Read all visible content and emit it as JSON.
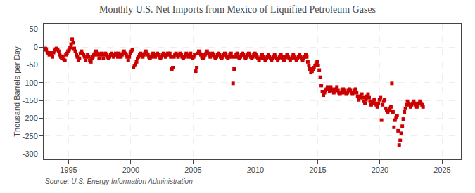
{
  "chart_data": {
    "type": "scatter",
    "title": "Monthly U.S. Net Imports from Mexico of Liquified Petroleum Gases",
    "ylabel": "Thousand Barrels per Day",
    "annotations": [
      "Source: U.S. Energy Information Administration"
    ],
    "color": "#cc0000",
    "marker": "square",
    "grid": true,
    "xlim": [
      1993.0,
      2026.5
    ],
    "ylim": [
      -315,
      65
    ],
    "xticks": [
      1995,
      2000,
      2005,
      2010,
      2015,
      2020,
      2025
    ],
    "yticks": [
      50,
      0,
      -50,
      -100,
      -150,
      -200,
      -250,
      -300
    ],
    "x": [
      1993.042,
      1993.125,
      1993.208,
      1993.292,
      1993.375,
      1993.458,
      1993.542,
      1993.625,
      1993.708,
      1993.792,
      1993.875,
      1993.958,
      1994.042,
      1994.125,
      1994.208,
      1994.292,
      1994.375,
      1994.458,
      1994.542,
      1994.625,
      1994.708,
      1994.792,
      1994.875,
      1994.958,
      1995.042,
      1995.125,
      1995.208,
      1995.292,
      1995.375,
      1995.458,
      1995.542,
      1995.625,
      1995.708,
      1995.792,
      1995.875,
      1995.958,
      1996.042,
      1996.125,
      1996.208,
      1996.292,
      1996.375,
      1996.458,
      1996.542,
      1996.625,
      1996.708,
      1996.792,
      1996.875,
      1996.958,
      1997.042,
      1997.125,
      1997.208,
      1997.292,
      1997.375,
      1997.458,
      1997.542,
      1997.625,
      1997.708,
      1997.792,
      1997.875,
      1997.958,
      1998.042,
      1998.125,
      1998.208,
      1998.292,
      1998.375,
      1998.458,
      1998.542,
      1998.625,
      1998.708,
      1998.792,
      1998.875,
      1998.958,
      1999.042,
      1999.125,
      1999.208,
      1999.292,
      1999.375,
      1999.458,
      1999.542,
      1999.625,
      1999.708,
      1999.792,
      1999.875,
      1999.958,
      2000.042,
      2000.125,
      2000.208,
      2000.292,
      2000.375,
      2000.458,
      2000.542,
      2000.625,
      2000.708,
      2000.792,
      2000.875,
      2000.958,
      2001.042,
      2001.125,
      2001.208,
      2001.292,
      2001.375,
      2001.458,
      2001.542,
      2001.625,
      2001.708,
      2001.792,
      2001.875,
      2001.958,
      2002.042,
      2002.125,
      2002.208,
      2002.292,
      2002.375,
      2002.458,
      2002.542,
      2002.625,
      2002.708,
      2002.792,
      2002.875,
      2002.958,
      2003.042,
      2003.125,
      2003.208,
      2003.292,
      2003.375,
      2003.458,
      2003.542,
      2003.625,
      2003.708,
      2003.792,
      2003.875,
      2003.958,
      2004.042,
      2004.125,
      2004.208,
      2004.292,
      2004.375,
      2004.458,
      2004.542,
      2004.625,
      2004.708,
      2004.792,
      2004.875,
      2004.958,
      2005.042,
      2005.125,
      2005.208,
      2005.292,
      2005.375,
      2005.458,
      2005.542,
      2005.625,
      2005.708,
      2005.792,
      2005.875,
      2005.958,
      2006.042,
      2006.125,
      2006.208,
      2006.292,
      2006.375,
      2006.458,
      2006.542,
      2006.625,
      2006.708,
      2006.792,
      2006.875,
      2006.958,
      2007.042,
      2007.125,
      2007.208,
      2007.292,
      2007.375,
      2007.458,
      2007.542,
      2007.625,
      2007.708,
      2007.792,
      2007.875,
      2007.958,
      2008.042,
      2008.125,
      2008.208,
      2008.292,
      2008.375,
      2008.458,
      2008.542,
      2008.625,
      2008.708,
      2008.792,
      2008.875,
      2008.958,
      2009.042,
      2009.125,
      2009.208,
      2009.292,
      2009.375,
      2009.458,
      2009.542,
      2009.625,
      2009.708,
      2009.792,
      2009.875,
      2009.958,
      2010.042,
      2010.125,
      2010.208,
      2010.292,
      2010.375,
      2010.458,
      2010.542,
      2010.625,
      2010.708,
      2010.792,
      2010.875,
      2010.958,
      2011.042,
      2011.125,
      2011.208,
      2011.292,
      2011.375,
      2011.458,
      2011.542,
      2011.625,
      2011.708,
      2011.792,
      2011.875,
      2011.958,
      2012.042,
      2012.125,
      2012.208,
      2012.292,
      2012.375,
      2012.458,
      2012.542,
      2012.625,
      2012.708,
      2012.792,
      2012.875,
      2012.958,
      2013.042,
      2013.125,
      2013.208,
      2013.292,
      2013.375,
      2013.458,
      2013.542,
      2013.625,
      2013.708,
      2013.792,
      2013.875,
      2013.958,
      2014.042,
      2014.125,
      2014.208,
      2014.292,
      2014.375,
      2014.458,
      2014.542,
      2014.625,
      2014.708,
      2014.792,
      2014.875,
      2014.958,
      2015.042,
      2015.125,
      2015.208,
      2015.292,
      2015.375,
      2015.458,
      2015.542,
      2015.625,
      2015.708,
      2015.792,
      2015.875,
      2015.958,
      2016.042,
      2016.125,
      2016.208,
      2016.292,
      2016.375,
      2016.458,
      2016.542,
      2016.625,
      2016.708,
      2016.792,
      2016.875,
      2016.958,
      2017.042,
      2017.125,
      2017.208,
      2017.292,
      2017.375,
      2017.458,
      2017.542,
      2017.625,
      2017.708,
      2017.792,
      2017.875,
      2017.958,
      2018.042,
      2018.125,
      2018.208,
      2018.292,
      2018.375,
      2018.458,
      2018.542,
      2018.625,
      2018.708,
      2018.792,
      2018.875,
      2018.958,
      2019.042,
      2019.125,
      2019.208,
      2019.292,
      2019.375,
      2019.458,
      2019.542,
      2019.625,
      2019.708,
      2019.792,
      2019.875,
      2019.958,
      2020.042,
      2020.125,
      2020.208,
      2020.292,
      2020.375,
      2020.458,
      2020.542,
      2020.625,
      2020.708,
      2020.792,
      2020.875,
      2020.958,
      2021.042,
      2021.125,
      2021.208,
      2021.292,
      2021.375,
      2021.458,
      2021.542,
      2021.625,
      2021.708,
      2021.792,
      2021.875,
      2021.958,
      2022.042,
      2022.125,
      2022.208,
      2022.292,
      2022.375,
      2022.458,
      2022.542,
      2022.625,
      2022.708,
      2022.792,
      2022.875,
      2022.958,
      2023.042,
      2023.125,
      2023.208,
      2023.292,
      2023.375,
      2023.458
    ],
    "values": [
      -8,
      -4,
      -6,
      -14,
      -18,
      -22,
      -16,
      -20,
      -28,
      -16,
      -10,
      -6,
      -4,
      -8,
      -12,
      -22,
      -28,
      -32,
      -26,
      -34,
      -38,
      -22,
      -18,
      -12,
      -8,
      -2,
      8,
      22,
      12,
      -4,
      -12,
      -22,
      -28,
      -38,
      -32,
      -18,
      -12,
      -18,
      -22,
      -28,
      -38,
      -28,
      -22,
      -28,
      -38,
      -42,
      -32,
      -28,
      -22,
      -18,
      -12,
      -18,
      -22,
      -32,
      -22,
      -18,
      -22,
      -32,
      -22,
      -18,
      -22,
      -28,
      -32,
      -28,
      -22,
      -18,
      -22,
      -28,
      -22,
      -18,
      -22,
      -28,
      -18,
      -22,
      -28,
      -22,
      -18,
      -12,
      -18,
      -22,
      -28,
      -38,
      -28,
      -18,
      -12,
      -8,
      -58,
      -52,
      -48,
      -42,
      -32,
      -28,
      -22,
      -18,
      -22,
      -28,
      -22,
      -18,
      -12,
      -18,
      -22,
      -28,
      -32,
      -28,
      -22,
      -18,
      -22,
      -28,
      -22,
      -18,
      -22,
      -28,
      -32,
      -28,
      -22,
      -18,
      -22,
      -28,
      -22,
      -18,
      -22,
      -18,
      -28,
      -62,
      -58,
      -28,
      -22,
      -18,
      -22,
      -28,
      -22,
      -18,
      -22,
      -28,
      -32,
      -28,
      -22,
      -18,
      -22,
      -28,
      -22,
      -18,
      -28,
      -32,
      -28,
      -22,
      -68,
      -58,
      -18,
      -12,
      -18,
      -22,
      -28,
      -32,
      -28,
      -22,
      -18,
      -12,
      -18,
      -22,
      -28,
      -22,
      -18,
      -22,
      -28,
      -32,
      -28,
      -22,
      -18,
      -22,
      -28,
      -32,
      -28,
      -22,
      -18,
      -22,
      -28,
      -32,
      -28,
      -22,
      -18,
      -28,
      -102,
      -62,
      -28,
      -22,
      -18,
      -28,
      -32,
      -28,
      -22,
      -18,
      -22,
      -28,
      -32,
      -28,
      -22,
      -18,
      -22,
      -28,
      -32,
      -28,
      -22,
      -18,
      -22,
      -28,
      -32,
      -38,
      -32,
      -28,
      -22,
      -28,
      -32,
      -38,
      -32,
      -28,
      -22,
      -28,
      -32,
      -38,
      -32,
      -28,
      -22,
      -28,
      -32,
      -38,
      -32,
      -28,
      -22,
      -28,
      -32,
      -38,
      -32,
      -28,
      -22,
      -28,
      -32,
      -38,
      -32,
      -28,
      -22,
      -28,
      -32,
      -38,
      -32,
      -28,
      -22,
      -28,
      -32,
      -38,
      -32,
      -28,
      -22,
      -28,
      -42,
      -52,
      -62,
      -72,
      -68,
      -62,
      -58,
      -52,
      -48,
      -42,
      -52,
      -65,
      -85,
      -108,
      -125,
      -135,
      -128,
      -122,
      -118,
      -112,
      -118,
      -125,
      -112,
      -118,
      -122,
      -128,
      -122,
      -118,
      -112,
      -122,
      -128,
      -132,
      -128,
      -122,
      -118,
      -122,
      -128,
      -132,
      -128,
      -122,
      -118,
      -122,
      -128,
      -132,
      -128,
      -122,
      -118,
      -128,
      -138,
      -148,
      -142,
      -138,
      -132,
      -142,
      -152,
      -158,
      -148,
      -138,
      -132,
      -142,
      -152,
      -162,
      -158,
      -152,
      -148,
      -158,
      -162,
      -168,
      -158,
      -148,
      -142,
      -205,
      -162,
      -152,
      -148,
      -172,
      -178,
      -182,
      -178,
      -172,
      -168,
      -102,
      -182,
      -225,
      -205,
      -198,
      -192,
      -235,
      -275,
      -262,
      -242,
      -222,
      -202,
      -182,
      -172,
      -162,
      -152,
      -158,
      -162,
      -168,
      -162,
      -158,
      -152,
      -158,
      -162,
      -168,
      -162,
      -158,
      -152,
      -158,
      -162,
      -168
    ]
  }
}
